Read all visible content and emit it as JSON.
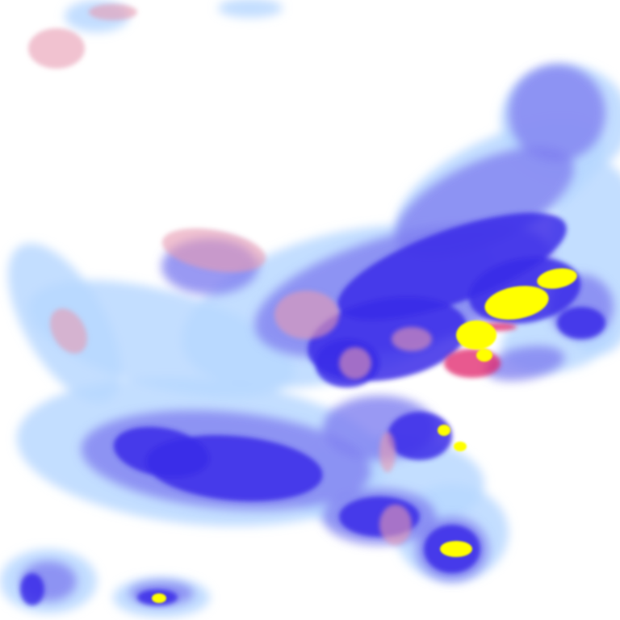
{
  "image": {
    "kind": "weather-satellite-cloud-imagery",
    "background_color": "#ffffff",
    "palette": {
      "thin_cloud": "#b8d8ff",
      "medium_cloud": "#8080f0",
      "thick_cloud": "#3a2ae8",
      "warm_pink": "#e89ab0",
      "red_core": "#e0206a",
      "yellow_core": "#ffff00"
    }
  }
}
